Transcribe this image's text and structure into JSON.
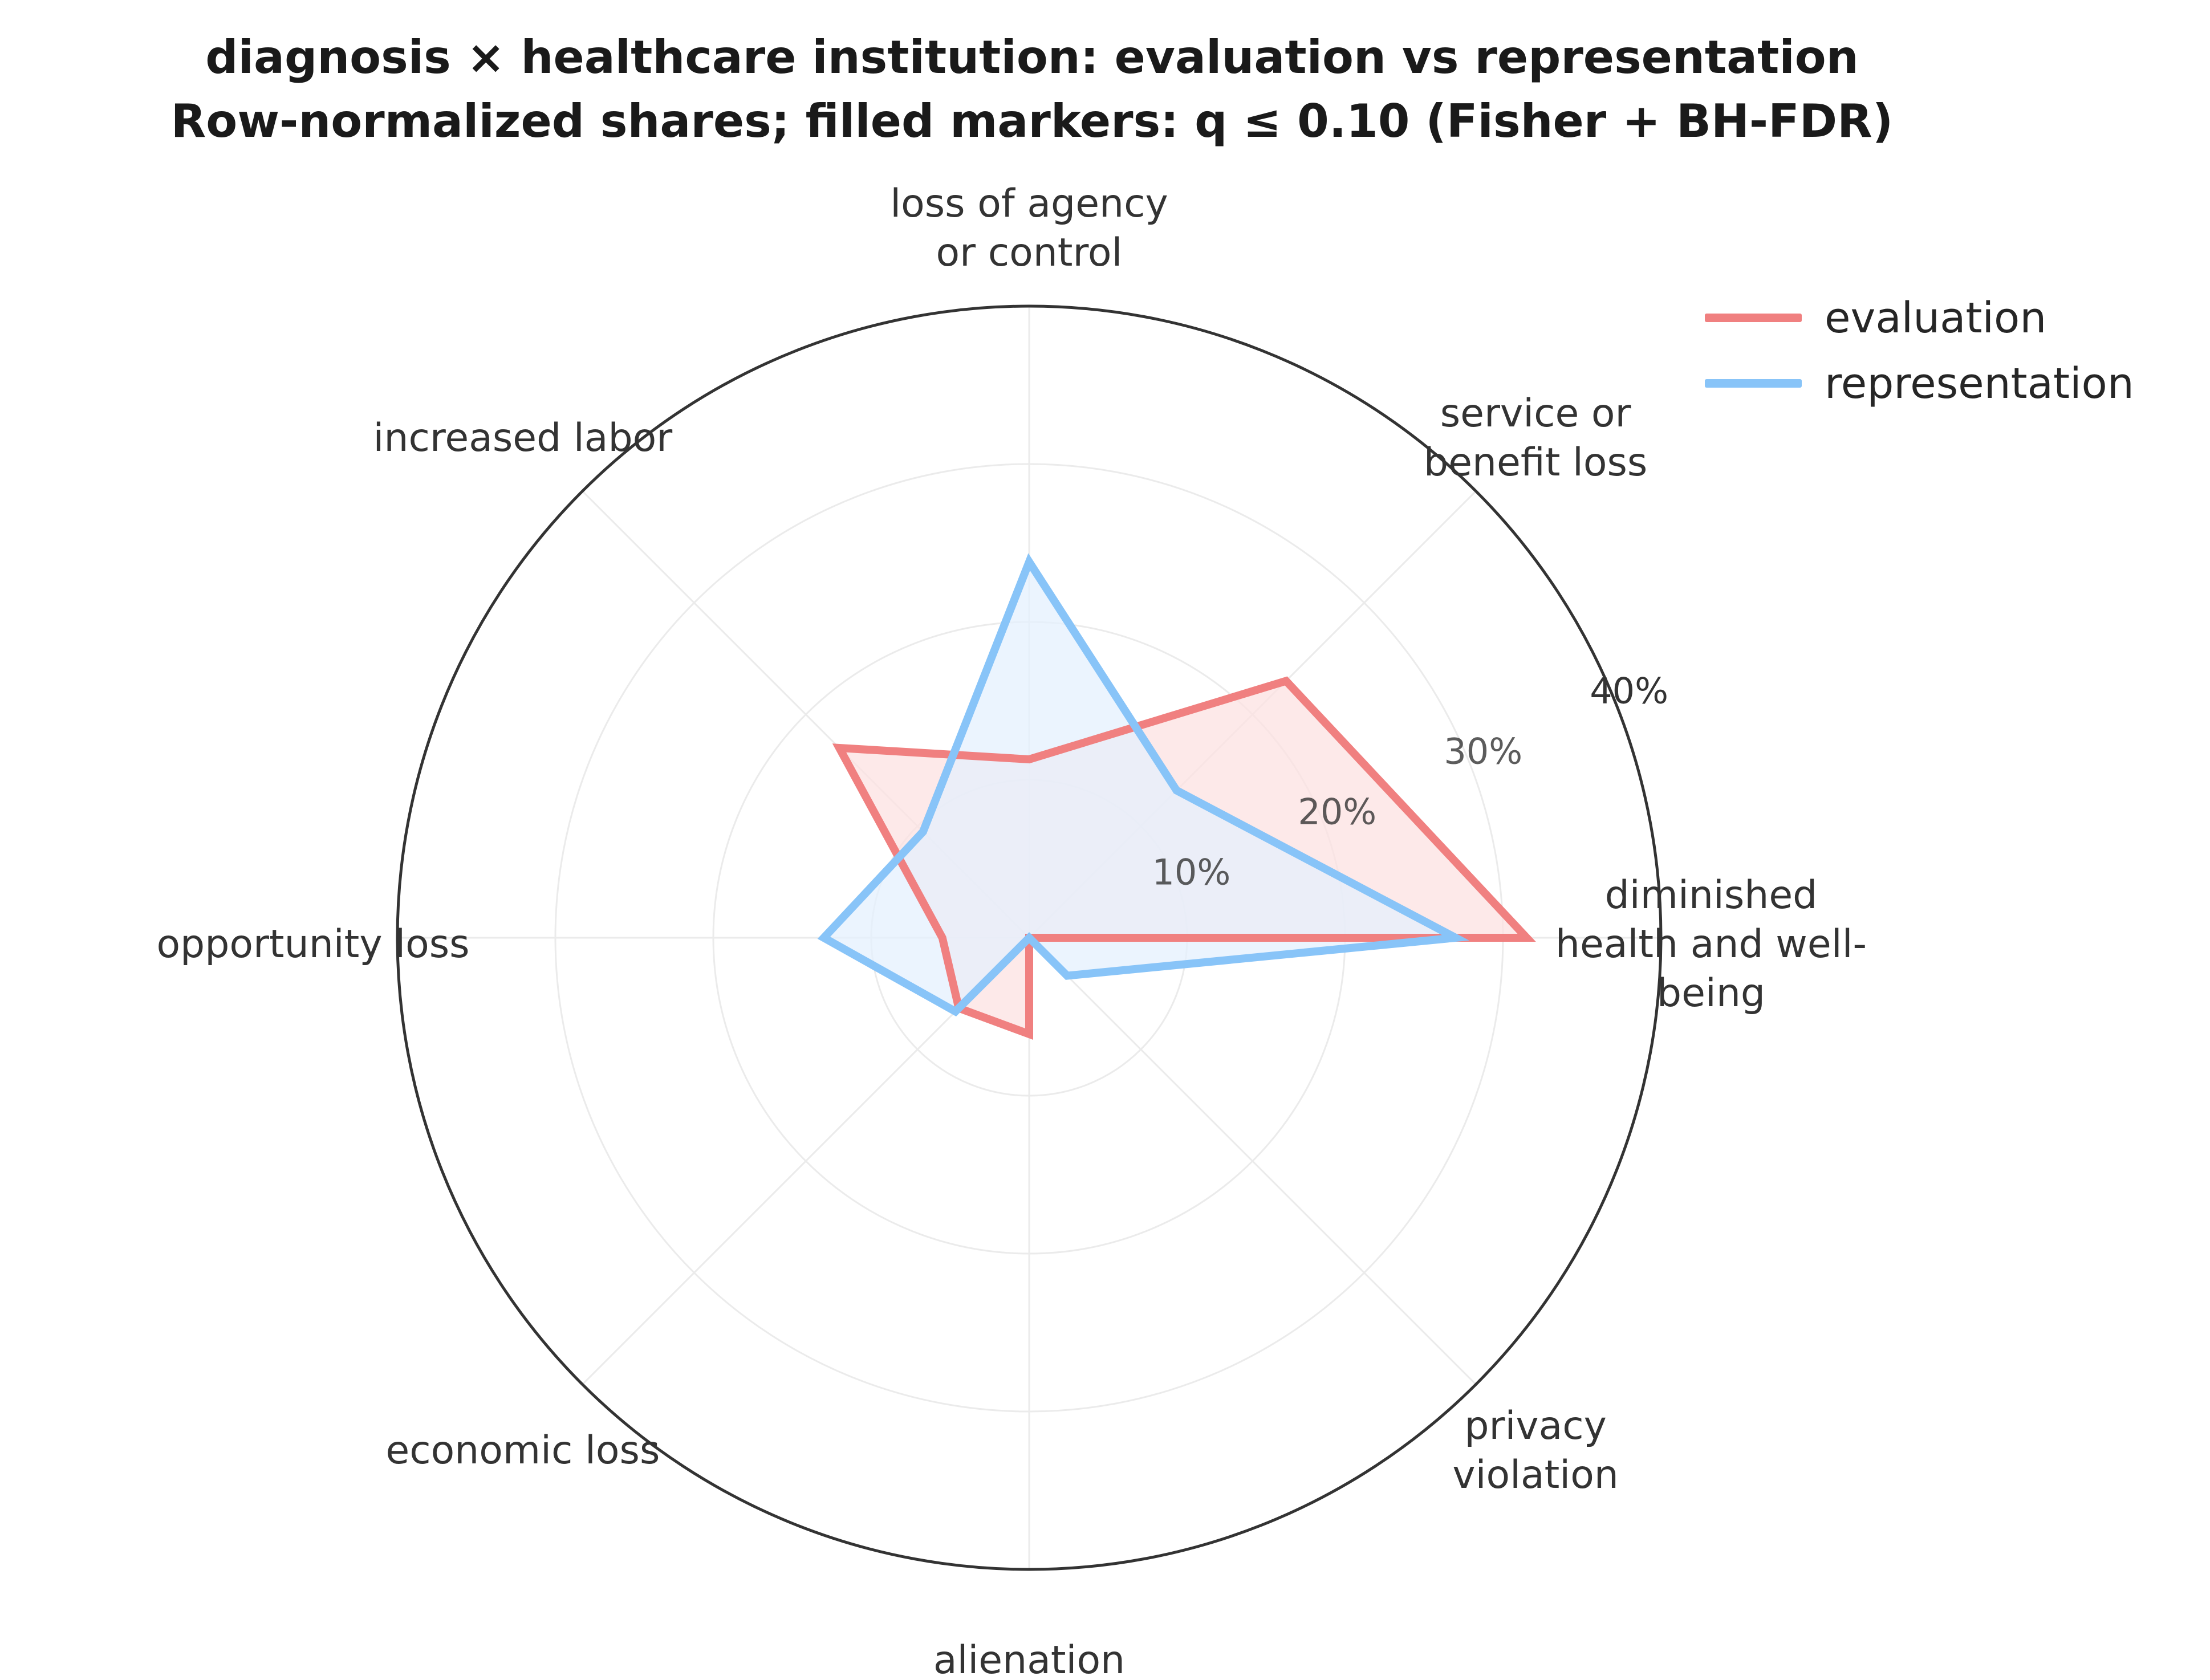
{
  "chart_data": {
    "type": "radar",
    "title": "diagnosis × healthcare institution: evaluation vs representation",
    "subtitle": "Row-normalized shares; filled markers: q ≤ 0.10 (Fisher + BH-FDR)",
    "categories": [
      "diminished health and well-being",
      "service or benefit loss",
      "loss of agency or control",
      "increased labor",
      "opportunity loss",
      "economic loss",
      "alienation",
      "privacy violation"
    ],
    "category_lines": [
      [
        "diminished",
        "health and well-",
        "being"
      ],
      [
        "service or",
        "benefit loss"
      ],
      [
        "loss of agency",
        "or control"
      ],
      [
        "increased labor"
      ],
      [
        "opportunity loss"
      ],
      [
        "economic loss"
      ],
      [
        "alienation"
      ],
      [
        "privacy",
        "violation"
      ]
    ],
    "r_ticks": [
      10,
      20,
      30,
      40
    ],
    "r_tick_labels": [
      "10%",
      "20%",
      "30%",
      "40%"
    ],
    "r_max": 40,
    "units": "%",
    "series": [
      {
        "name": "evaluation",
        "color": "#f08080",
        "fill": "#fce0e0",
        "values": [
          31.5,
          23.0,
          11.3,
          17.0,
          5.5,
          6.3,
          6.1,
          0
        ]
      },
      {
        "name": "representation",
        "color": "#88c4f8",
        "fill": "#e3f0fd",
        "values": [
          27.0,
          13.2,
          23.8,
          9.5,
          13.0,
          6.6,
          0,
          3.4
        ]
      }
    ],
    "legend_position": "top-right",
    "grid": true
  }
}
